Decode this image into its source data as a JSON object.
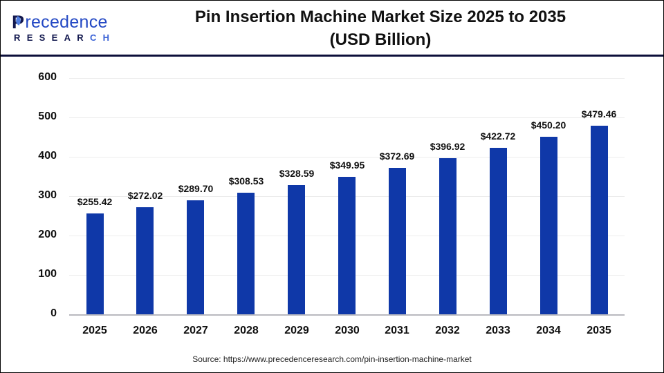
{
  "brand": {
    "logo_top": "recedence",
    "logo_p": "P",
    "logo_bottom_main": "RESEAR",
    "logo_bottom_accent": "CH"
  },
  "header": {
    "title_line1": "Pin Insertion Machine Market Size 2025 to 2035",
    "title_line2": "(USD Billion)"
  },
  "footer": {
    "source": "Source: https://www.precedenceresearch.com/pin-insertion-machine-market"
  },
  "colors": {
    "bar": "#0f38a8",
    "header_rule": "#0c0f3a",
    "logo_dark": "#13194f",
    "logo_blue": "#2348c4"
  },
  "chart_data": {
    "type": "bar",
    "title": "Pin Insertion Machine Market Size 2025 to 2035 (USD Billion)",
    "xlabel": "",
    "ylabel": "",
    "categories": [
      "2025",
      "2026",
      "2027",
      "2028",
      "2029",
      "2030",
      "2031",
      "2032",
      "2033",
      "2034",
      "2035"
    ],
    "values": [
      255.42,
      272.02,
      289.7,
      308.53,
      328.59,
      349.95,
      372.69,
      396.92,
      422.72,
      450.2,
      479.46
    ],
    "value_labels": [
      "$255.42",
      "$272.02",
      "$289.70",
      "$308.53",
      "$328.59",
      "$349.95",
      "$372.69",
      "$396.92",
      "$422.72",
      "$450.20",
      "$479.46"
    ],
    "yticks": [
      "0",
      "100",
      "200",
      "300",
      "400",
      "500",
      "600"
    ],
    "ylim": [
      0,
      600
    ],
    "grid": true,
    "legend": null
  }
}
